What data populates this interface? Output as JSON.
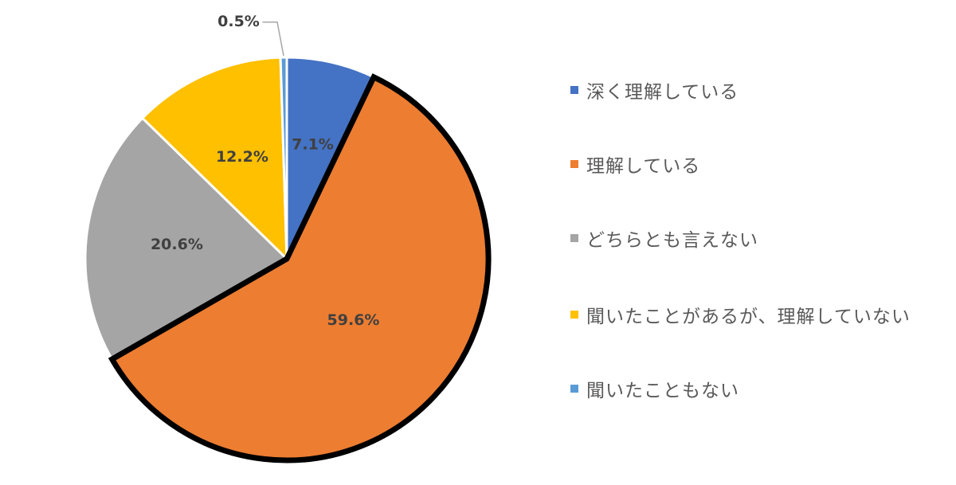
{
  "chart_data": {
    "type": "pie",
    "categories": [
      "深く理解している",
      "理解している",
      "どちらとも言えない",
      "聞いたことがあるが、理解していない",
      "聞いたこともない"
    ],
    "values": [
      7.1,
      59.6,
      20.6,
      12.2,
      0.5
    ],
    "labels": [
      "7.1%",
      "59.6%",
      "20.6%",
      "12.2%",
      "0.5%"
    ],
    "colors": [
      "#4472c4",
      "#ed7d31",
      "#a5a5a5",
      "#ffc000",
      "#5b9bd5"
    ],
    "highlighted": "理解している",
    "legend": "right"
  }
}
